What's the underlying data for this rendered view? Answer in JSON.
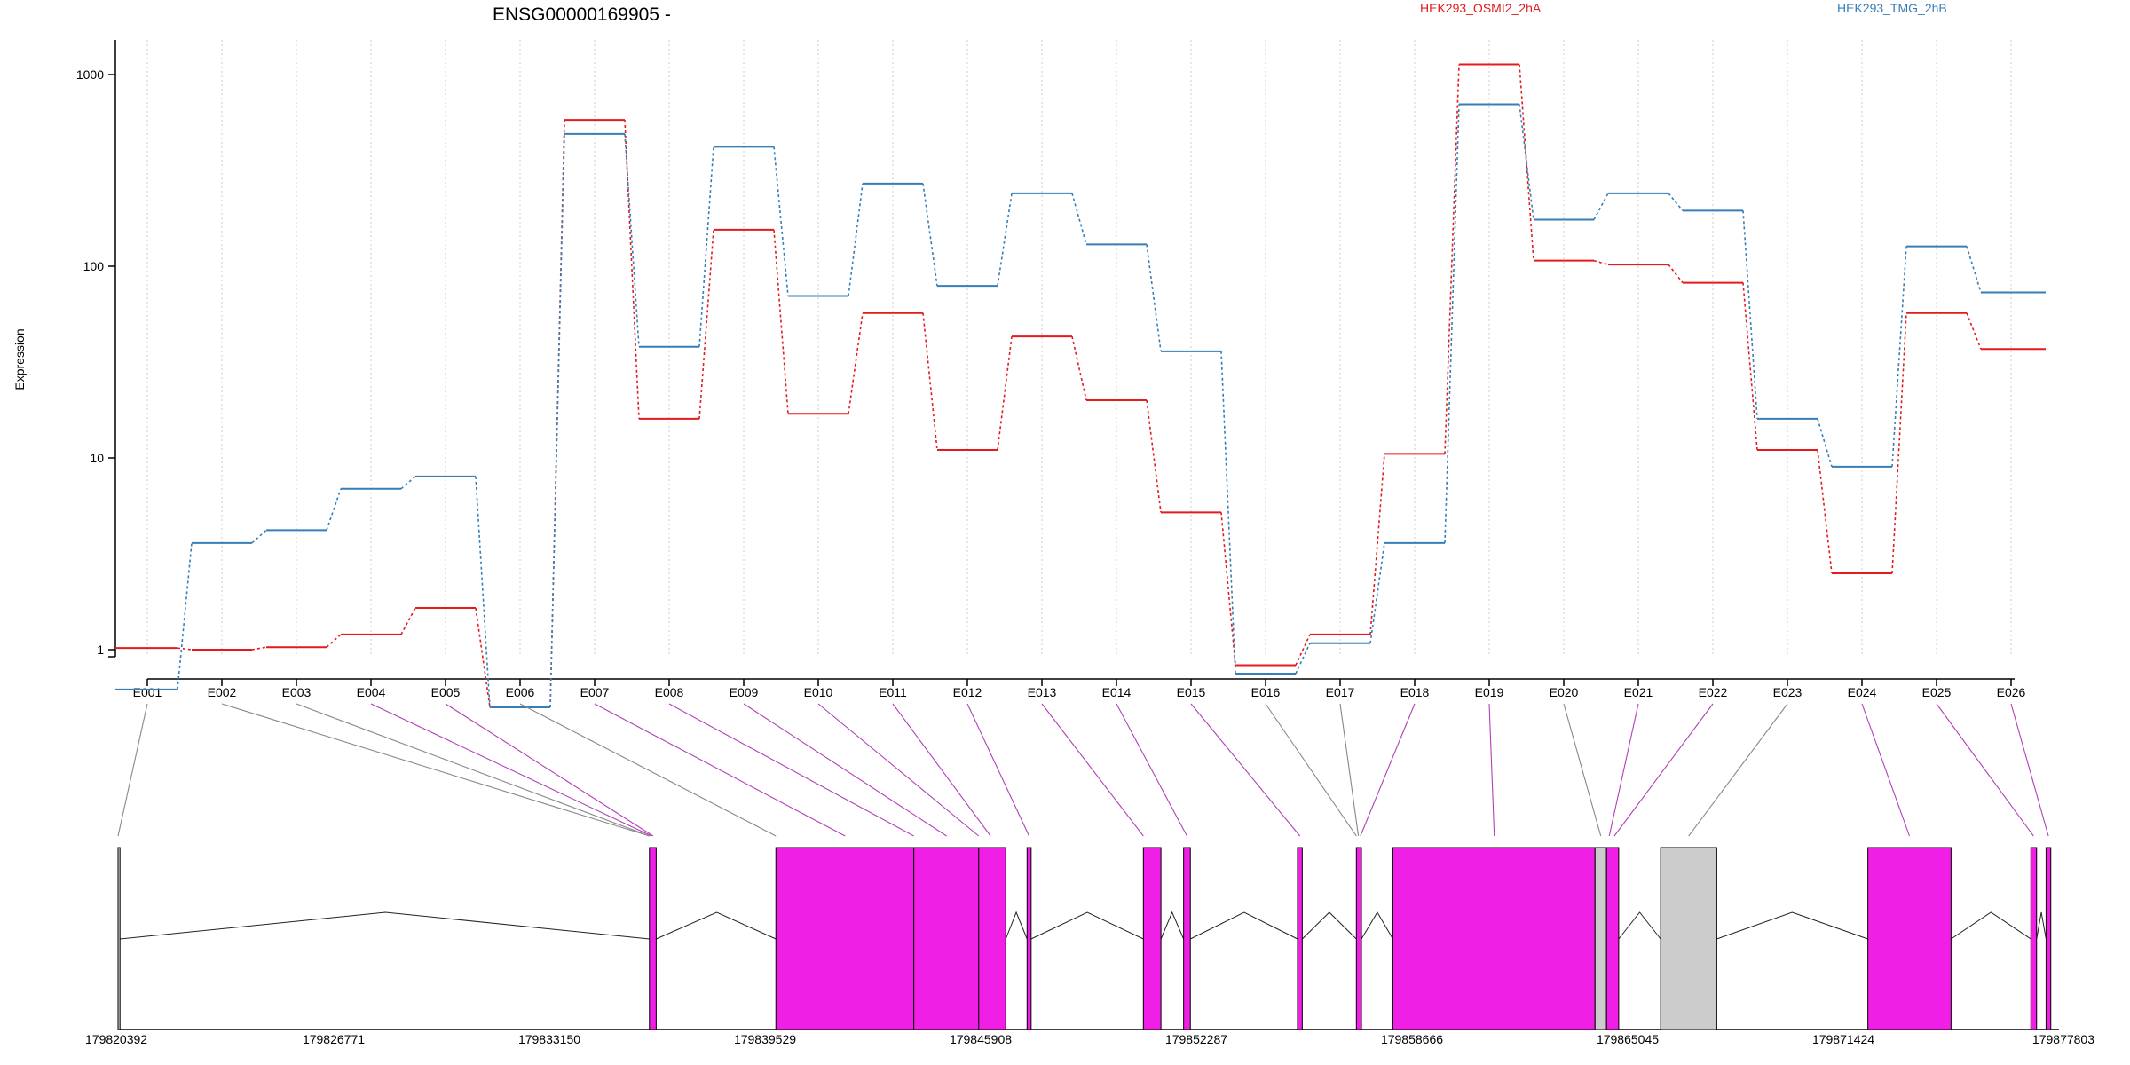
{
  "chart_data": {
    "type": "line",
    "title": "ENSG00000169905 -",
    "ylabel": "Expression",
    "xlabel": "",
    "y_scale": "log",
    "ylim": [
      0.5,
      1300
    ],
    "y_ticks": [
      1,
      10,
      100,
      1000
    ],
    "y_tick_labels": [
      "1",
      "10",
      "100",
      "1000"
    ],
    "legend_position": "top",
    "grid": "vertical dotted at each exon",
    "categories": [
      "E001",
      "E002",
      "E003",
      "E004",
      "E005",
      "E006",
      "E007",
      "E008",
      "E009",
      "E010",
      "E011",
      "E012",
      "E013",
      "E014",
      "E015",
      "E016",
      "E017",
      "E018",
      "E019",
      "E020",
      "E021",
      "E022",
      "E023",
      "E024",
      "E025",
      "E026"
    ],
    "series": [
      {
        "name": "HEK293_OSMI2_2hA",
        "color": "#e41a1c",
        "values": [
          1.02,
          1.0,
          1.03,
          1.2,
          1.65,
          0.5,
          580,
          16,
          155,
          17,
          57,
          11,
          43,
          20,
          5.2,
          0.83,
          1.2,
          10.5,
          1130,
          107,
          102,
          82,
          11,
          2.5,
          57,
          37
        ]
      },
      {
        "name": "HEK293_TMG_2hB",
        "color": "#377eb8",
        "values": [
          0.62,
          3.6,
          4.2,
          6.9,
          8.0,
          0.5,
          490,
          38,
          420,
          70,
          270,
          79,
          240,
          130,
          36,
          0.75,
          1.08,
          3.6,
          700,
          175,
          240,
          195,
          16,
          9,
          127,
          73
        ]
      }
    ]
  },
  "gene_model": {
    "coordinate_labels": [
      "179820392",
      "179826771",
      "179833150",
      "179839529",
      "179845908",
      "179852287",
      "179858666",
      "179865045",
      "179871424",
      "179877803"
    ],
    "coord_start": 179820392,
    "coord_end": 179877803,
    "exon_fill": "#f01fe6",
    "nonexpressed_fill": "#cccccc",
    "blocks": [
      {
        "start": 179820392,
        "end": 179820450,
        "kind": "grey"
      },
      {
        "start": 179836110,
        "end": 179836310,
        "kind": "magenta"
      },
      {
        "start": 179839850,
        "end": 179843930,
        "kind": "magenta"
      },
      {
        "start": 179843930,
        "end": 179845850,
        "kind": "magenta"
      },
      {
        "start": 179845850,
        "end": 179846650,
        "kind": "magenta"
      },
      {
        "start": 179847280,
        "end": 179847400,
        "kind": "magenta"
      },
      {
        "start": 179850720,
        "end": 179851240,
        "kind": "magenta"
      },
      {
        "start": 179851910,
        "end": 179852110,
        "kind": "magenta"
      },
      {
        "start": 179855280,
        "end": 179855420,
        "kind": "magenta"
      },
      {
        "start": 179857020,
        "end": 179857170,
        "kind": "magenta"
      },
      {
        "start": 179858100,
        "end": 179864080,
        "kind": "magenta"
      },
      {
        "start": 179864080,
        "end": 179864420,
        "kind": "grey"
      },
      {
        "start": 179864420,
        "end": 179864780,
        "kind": "magenta"
      },
      {
        "start": 179866020,
        "end": 179867680,
        "kind": "grey"
      },
      {
        "start": 179872150,
        "end": 179874610,
        "kind": "magenta"
      },
      {
        "start": 179876970,
        "end": 179877140,
        "kind": "magenta"
      },
      {
        "start": 179877420,
        "end": 179877560,
        "kind": "magenta"
      }
    ],
    "intron_lines": [
      [
        179820450,
        179836110,
        179828300
      ],
      [
        179836310,
        179839850,
        179838100
      ],
      [
        179846650,
        179847280,
        179846960
      ],
      [
        179847400,
        179850720,
        179849060
      ],
      [
        179851240,
        179851910,
        179851570
      ],
      [
        179852110,
        179855280,
        179853700
      ],
      [
        179855420,
        179857020,
        179856220
      ],
      [
        179857170,
        179858100,
        179857640
      ],
      [
        179864780,
        179866020,
        179865400
      ],
      [
        179867680,
        179872150,
        179869910
      ],
      [
        179874610,
        179876970,
        179875790
      ],
      [
        179877140,
        179877420,
        179877280
      ]
    ],
    "exon_links": [
      {
        "bin": "E001",
        "coord": 179820392,
        "kind": "grey"
      },
      {
        "bin": "E002",
        "coord": 179836110,
        "kind": "grey"
      },
      {
        "bin": "E003",
        "coord": 179836110,
        "kind": "grey"
      },
      {
        "bin": "E004",
        "coord": 179836170,
        "kind": "magenta"
      },
      {
        "bin": "E005",
        "coord": 179836220,
        "kind": "magenta"
      },
      {
        "bin": "E006",
        "coord": 179839850,
        "kind": "grey"
      },
      {
        "bin": "E007",
        "coord": 179841900,
        "kind": "magenta"
      },
      {
        "bin": "E008",
        "coord": 179843930,
        "kind": "magenta"
      },
      {
        "bin": "E009",
        "coord": 179844900,
        "kind": "magenta"
      },
      {
        "bin": "E010",
        "coord": 179845850,
        "kind": "magenta"
      },
      {
        "bin": "E011",
        "coord": 179846200,
        "kind": "magenta"
      },
      {
        "bin": "E012",
        "coord": 179847340,
        "kind": "magenta"
      },
      {
        "bin": "E013",
        "coord": 179850720,
        "kind": "magenta"
      },
      {
        "bin": "E014",
        "coord": 179852010,
        "kind": "magenta"
      },
      {
        "bin": "E015",
        "coord": 179855350,
        "kind": "magenta"
      },
      {
        "bin": "E016",
        "coord": 179857020,
        "kind": "grey"
      },
      {
        "bin": "E017",
        "coord": 179857080,
        "kind": "grey"
      },
      {
        "bin": "E018",
        "coord": 179857140,
        "kind": "magenta"
      },
      {
        "bin": "E019",
        "coord": 179861100,
        "kind": "magenta"
      },
      {
        "bin": "E020",
        "coord": 179864250,
        "kind": "grey"
      },
      {
        "bin": "E021",
        "coord": 179864500,
        "kind": "magenta"
      },
      {
        "bin": "E022",
        "coord": 179864650,
        "kind": "magenta"
      },
      {
        "bin": "E023",
        "coord": 179866850,
        "kind": "grey"
      },
      {
        "bin": "E024",
        "coord": 179873380,
        "kind": "magenta"
      },
      {
        "bin": "E025",
        "coord": 179877050,
        "kind": "magenta"
      },
      {
        "bin": "E026",
        "coord": 179877490,
        "kind": "magenta"
      }
    ]
  }
}
